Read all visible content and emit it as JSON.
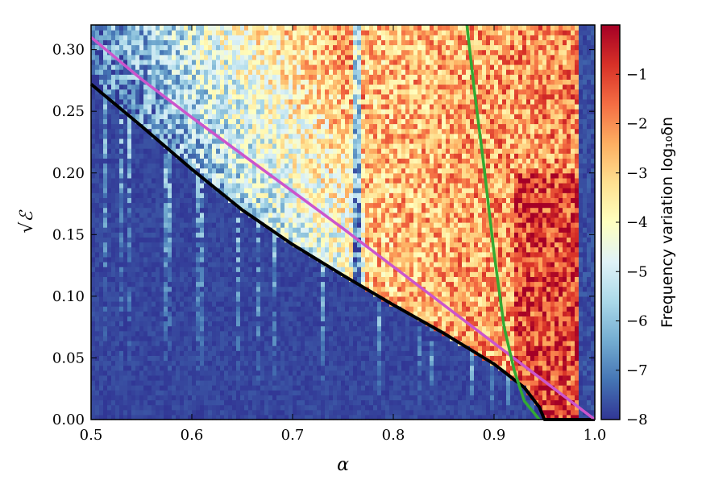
{
  "chart_data": {
    "type": "heatmap",
    "xlabel": "α",
    "ylabel": "√ℰ",
    "xlim": [
      0.5,
      1.0
    ],
    "ylim": [
      0.0,
      0.32
    ],
    "x_ticks": [
      "0.5",
      "0.6",
      "0.7",
      "0.8",
      "0.9",
      "1.0"
    ],
    "y_ticks": [
      "0.00",
      "0.05",
      "0.10",
      "0.15",
      "0.20",
      "0.25",
      "0.30"
    ],
    "colorbar": {
      "label": "Frequency variation log₁₀δn",
      "range": [
        -8,
        0
      ],
      "ticks": [
        "−1",
        "−2",
        "−3",
        "−4",
        "−5",
        "−6",
        "−7",
        "−8"
      ],
      "colormap": [
        "#313695",
        "#4575b4",
        "#74add1",
        "#abd9e9",
        "#e0f3f8",
        "#ffffbf",
        "#fee090",
        "#fdae61",
        "#f46d43",
        "#d73027",
        "#a50026"
      ]
    },
    "series": [
      {
        "color": "#000000",
        "x": [
          0.5,
          0.55,
          0.6,
          0.65,
          0.7,
          0.75,
          0.8,
          0.85,
          0.9,
          0.93,
          0.945,
          0.95,
          1.0
        ],
        "y": [
          0.272,
          0.238,
          0.203,
          0.17,
          0.142,
          0.117,
          0.093,
          0.07,
          0.045,
          0.026,
          0.01,
          0.0,
          0.0
        ]
      },
      {
        "color": "#cc55cc",
        "x": [
          0.5,
          0.55,
          0.6,
          0.65,
          0.7,
          0.75,
          0.8,
          0.85,
          0.9,
          0.95,
          1.0
        ],
        "y": [
          0.31,
          0.276,
          0.245,
          0.215,
          0.185,
          0.155,
          0.124,
          0.093,
          0.062,
          0.031,
          0.0
        ]
      },
      {
        "color": "#33aa33",
        "x": [
          0.873,
          0.88,
          0.89,
          0.9,
          0.91,
          0.92,
          0.93,
          0.945
        ],
        "y": [
          0.32,
          0.27,
          0.205,
          0.135,
          0.075,
          0.04,
          0.015,
          0.0
        ]
      }
    ]
  }
}
